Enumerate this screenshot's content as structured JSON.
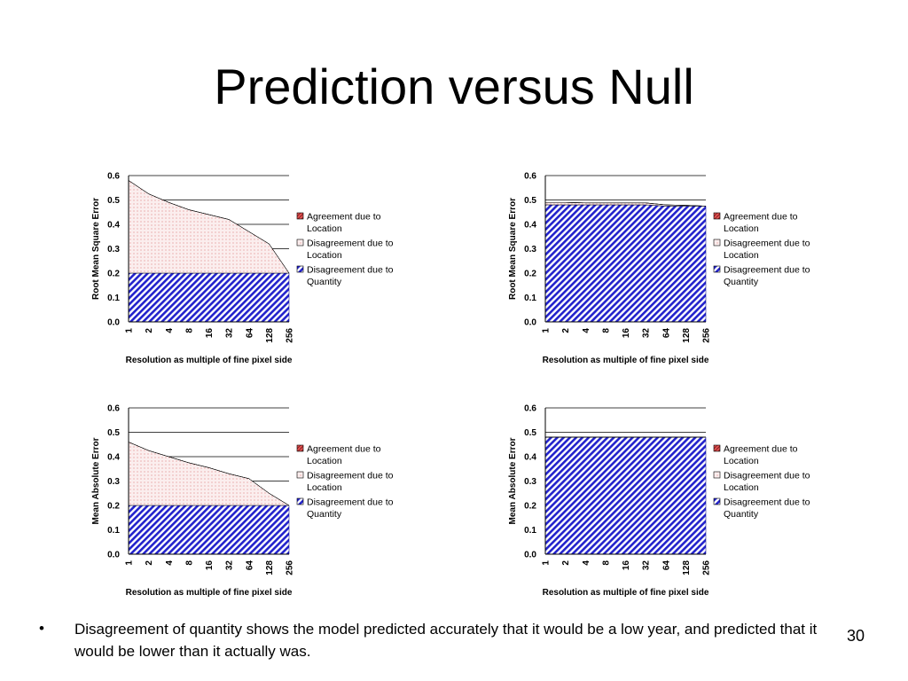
{
  "slide": {
    "title": "Prediction versus Null",
    "bullet_symbol": "•",
    "caption": "Disagreement of quantity shows the model predicted accurately that it would be a low year, and predicted that it would be lower than it actually was.",
    "page_number": "30"
  },
  "colors": {
    "agreement_location": "#e05050",
    "disagreement_location": "#fbeeee",
    "disagreement_quantity": "#2222cc",
    "gridline": "#000000"
  },
  "chart_data": [
    {
      "type": "area",
      "stacked": true,
      "ylabel": "Root Mean Square Error",
      "xlabel": "Resolution as multiple of fine pixel side",
      "categories": [
        "1",
        "2",
        "4",
        "8",
        "16",
        "32",
        "64",
        "128",
        "256"
      ],
      "ylim": [
        0,
        0.6
      ],
      "yticks": [
        "0.0",
        "0.1",
        "0.2",
        "0.3",
        "0.4",
        "0.5",
        "0.6"
      ],
      "grid": true,
      "legend_position": "right",
      "series": [
        {
          "name": "Disagreement due to Quantity",
          "values": [
            0.2,
            0.2,
            0.2,
            0.2,
            0.2,
            0.2,
            0.2,
            0.2,
            0.2
          ]
        },
        {
          "name": "Disagreement due to Location",
          "values": [
            0.38,
            0.325,
            0.29,
            0.26,
            0.24,
            0.22,
            0.17,
            0.12,
            0.0
          ]
        },
        {
          "name": "Agreement due to Location",
          "values": [
            0,
            0,
            0,
            0,
            0,
            0,
            0,
            0,
            0
          ]
        }
      ]
    },
    {
      "type": "area",
      "stacked": true,
      "ylabel": "Root Mean Square Error",
      "xlabel": "Resolution as multiple of fine pixel side",
      "categories": [
        "1",
        "2",
        "4",
        "8",
        "16",
        "32",
        "64",
        "128",
        "256"
      ],
      "ylim": [
        0,
        0.6
      ],
      "yticks": [
        "0.0",
        "0.1",
        "0.2",
        "0.3",
        "0.4",
        "0.5",
        "0.6"
      ],
      "grid": true,
      "legend_position": "right",
      "series": [
        {
          "name": "Disagreement due to Quantity",
          "values": [
            0.48,
            0.48,
            0.48,
            0.48,
            0.48,
            0.48,
            0.475,
            0.475,
            0.475
          ]
        },
        {
          "name": "Disagreement due to Location",
          "values": [
            0.01,
            0.01,
            0.008,
            0.008,
            0.008,
            0.008,
            0.005,
            0.003,
            0.0
          ]
        },
        {
          "name": "Agreement due to Location",
          "values": [
            0,
            0,
            0,
            0,
            0,
            0,
            0,
            0,
            0
          ]
        }
      ]
    },
    {
      "type": "area",
      "stacked": true,
      "ylabel": "Mean Absolute Error",
      "xlabel": "Resolution as multiple of fine pixel side",
      "categories": [
        "1",
        "2",
        "4",
        "8",
        "16",
        "32",
        "64",
        "128",
        "256"
      ],
      "ylim": [
        0,
        0.6
      ],
      "yticks": [
        "0.0",
        "0.1",
        "0.2",
        "0.3",
        "0.4",
        "0.5",
        "0.6"
      ],
      "grid": true,
      "legend_position": "right",
      "series": [
        {
          "name": "Disagreement due to Quantity",
          "values": [
            0.2,
            0.2,
            0.2,
            0.2,
            0.2,
            0.2,
            0.2,
            0.2,
            0.2
          ]
        },
        {
          "name": "Disagreement due to Location",
          "values": [
            0.26,
            0.225,
            0.2,
            0.175,
            0.155,
            0.13,
            0.11,
            0.05,
            0.0
          ]
        },
        {
          "name": "Agreement due to Location",
          "values": [
            0,
            0,
            0,
            0,
            0,
            0,
            0,
            0,
            0
          ]
        }
      ]
    },
    {
      "type": "area",
      "stacked": true,
      "ylabel": "Mean Absolute Error",
      "xlabel": "Resolution as multiple of fine pixel side",
      "categories": [
        "1",
        "2",
        "4",
        "8",
        "16",
        "32",
        "64",
        "128",
        "256"
      ],
      "ylim": [
        0,
        0.6
      ],
      "yticks": [
        "0.0",
        "0.1",
        "0.2",
        "0.3",
        "0.4",
        "0.5",
        "0.6"
      ],
      "grid": true,
      "legend_position": "right",
      "series": [
        {
          "name": "Disagreement due to Quantity",
          "values": [
            0.48,
            0.48,
            0.48,
            0.48,
            0.48,
            0.48,
            0.48,
            0.48,
            0.48
          ]
        },
        {
          "name": "Disagreement due to Location",
          "values": [
            0,
            0,
            0,
            0,
            0,
            0,
            0,
            0,
            0
          ]
        },
        {
          "name": "Agreement due to Location",
          "values": [
            0,
            0,
            0,
            0,
            0,
            0,
            0,
            0,
            0
          ]
        }
      ]
    }
  ],
  "legend": [
    {
      "line1": "Agreement due to",
      "line2": "Location"
    },
    {
      "line1": "Disagreement due to",
      "line2": "Location"
    },
    {
      "line1": "Disagreement due to",
      "line2": "Quantity"
    }
  ]
}
